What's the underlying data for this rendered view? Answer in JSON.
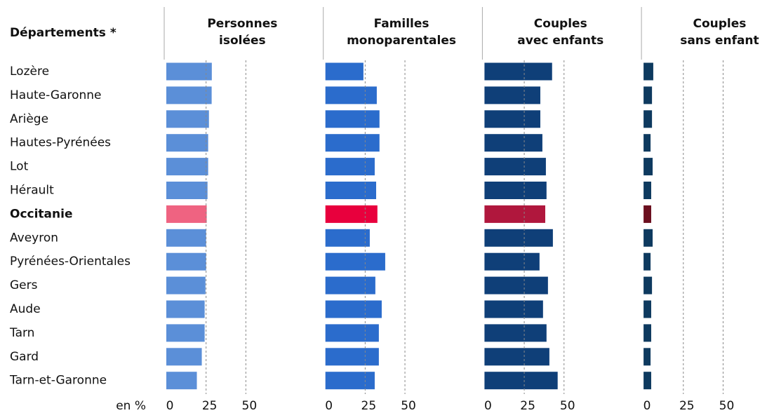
{
  "chart_data": {
    "type": "bar",
    "orientation": "horizontal",
    "category_title": "Départements *",
    "axis_label": "en %",
    "categories": [
      "Lozère",
      "Haute-Garonne",
      "Ariège",
      "Hautes-Pyrénées",
      "Lot",
      "Hérault",
      "Occitanie",
      "Aveyron",
      "Pyrénées-Orientales",
      "Gers",
      "Aude",
      "Tarn",
      "Gard",
      "Tarn-et-Garonne"
    ],
    "highlight": "Occitanie",
    "xlim": [
      0,
      100
    ],
    "xticks": [
      0,
      25,
      50
    ],
    "grid": true,
    "series": [
      {
        "name": "Personnes\nisolées",
        "color": "#5b8fd8",
        "highlight_color": "#ef6381",
        "values": [
          28.6,
          28.5,
          26.8,
          26.3,
          26.3,
          25.9,
          25.4,
          25.0,
          25.0,
          24.6,
          24.1,
          24.1,
          22.3,
          19.2
        ]
      },
      {
        "name": "Familles\nmonoparentales",
        "color": "#2b6ccc",
        "highlight_color": "#e8003d",
        "values": [
          23.9,
          32.3,
          34.0,
          34.0,
          31.0,
          31.9,
          32.7,
          27.9,
          37.6,
          31.4,
          35.4,
          33.6,
          33.6,
          31.0
        ]
      },
      {
        "name": "Couples\navec enfants",
        "color": "#0f3f78",
        "highlight_color": "#b0173d",
        "values": [
          42.5,
          35.1,
          35.1,
          36.4,
          38.6,
          39.0,
          38.2,
          43.0,
          34.6,
          39.9,
          36.8,
          39.0,
          40.8,
          46.0
        ]
      },
      {
        "name": "Couples\nsans enfant",
        "color": "#0e3a5f",
        "highlight_color": "#6b0f1f",
        "values": [
          6.1,
          5.3,
          5.3,
          4.4,
          5.7,
          4.8,
          4.8,
          5.7,
          4.4,
          5.3,
          4.8,
          4.8,
          4.4,
          4.8
        ]
      }
    ]
  }
}
